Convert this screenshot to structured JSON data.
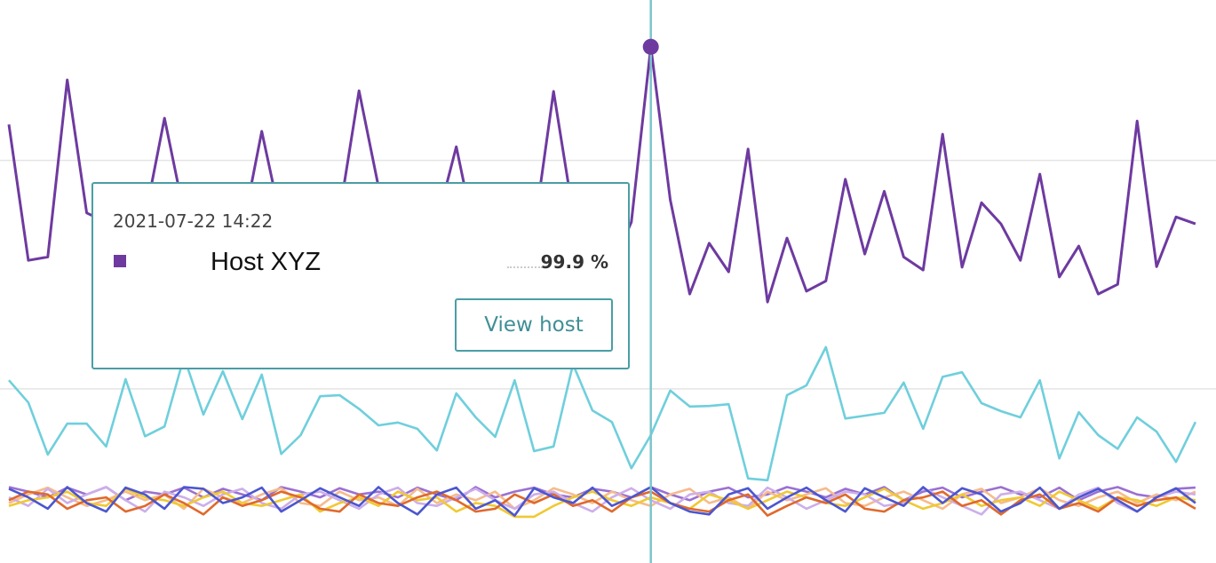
{
  "chart_data": {
    "type": "line",
    "ylim": [
      9.5,
      108.1
    ],
    "gridlines": [
      40,
      80
    ],
    "grid": true,
    "hover_index": 33,
    "series": [
      {
        "name": "Host XYZ",
        "color": "#6e3aa0",
        "values": [
          86.3,
          62.5,
          63.1,
          94.1,
          70.8,
          69.2,
          63.0,
          70.0,
          87.4,
          70.8,
          66.1,
          63.0,
          67.7,
          85.1,
          69.2,
          63.8,
          67.7,
          70.8,
          92.2,
          75.4,
          64.5,
          63.0,
          69.2,
          82.4,
          66.1,
          63.0,
          69.2,
          67.7,
          92.1,
          70.8,
          63.8,
          61.4,
          69.2,
          99.9,
          73.1,
          56.6,
          65.5,
          60.5,
          82.0,
          55.2,
          66.4,
          57.1,
          58.9,
          76.7,
          63.6,
          74.6,
          63.1,
          60.8,
          84.6,
          61.3,
          72.6,
          68.9,
          62.5,
          77.6,
          59.6,
          65.0,
          56.6,
          58.3,
          86.9,
          61.4,
          70.1,
          68.9
        ]
      },
      {
        "color": "#6fcfdc",
        "values": [
          41.5,
          37.6,
          28.5,
          33.9,
          33.9,
          29.9,
          41.7,
          31.7,
          33.4,
          45.6,
          35.5,
          43.1,
          34.7,
          42.5,
          28.6,
          31.9,
          38.7,
          38.9,
          36.5,
          33.6,
          34.1,
          33.0,
          29.2,
          39.2,
          35.0,
          31.6,
          41.5,
          29.1,
          29.9,
          44.3,
          36.2,
          34.2,
          26.1,
          31.9,
          39.7,
          36.9,
          37.0,
          37.3,
          24.3,
          24.0,
          38.9,
          40.6,
          47.3,
          34.8,
          35.3,
          35.8,
          41.1,
          33.0,
          42.1,
          42.9,
          37.5,
          36.1,
          35.0,
          41.5,
          27.8,
          35.9,
          31.9,
          29.5,
          35.0,
          32.5,
          27.2,
          34.2
        ]
      },
      {
        "color": "#4b56cf",
        "values": [
          22.5,
          21.0,
          19.0,
          22.8,
          20.0,
          18.5,
          22.7,
          21.5,
          19.0,
          22.8,
          22.5,
          20.0,
          21.0,
          22.7,
          18.5,
          20.5,
          22.6,
          21.0,
          19.5,
          22.8,
          20.0,
          18.0,
          21.5,
          22.7,
          19.0,
          20.5,
          17.8,
          22.6,
          21.0,
          20.0,
          22.7,
          19.5,
          21.0,
          22.8,
          20.0,
          18.5,
          18.0,
          21.5,
          22.6,
          19.0,
          21.0,
          22.7,
          20.5,
          18.5,
          22.6,
          21.0,
          19.5,
          22.8,
          20.0,
          22.6,
          21.5,
          18.5,
          20.0,
          22.7,
          19.0,
          21.0,
          22.5,
          20.5,
          18.5,
          21.0,
          22.6,
          20.0
        ]
      },
      {
        "color": "#e0692b",
        "values": [
          20.5,
          22.0,
          21.5,
          19.0,
          20.5,
          21.0,
          18.5,
          19.5,
          21.5,
          20.0,
          18.0,
          21.0,
          19.5,
          20.5,
          22.0,
          21.0,
          19.0,
          18.5,
          21.5,
          20.0,
          19.5,
          21.0,
          22.0,
          20.5,
          18.5,
          19.0,
          21.5,
          20.0,
          21.5,
          19.5,
          20.5,
          18.5,
          21.0,
          22.0,
          20.0,
          19.0,
          18.5,
          20.5,
          21.5,
          17.8,
          19.5,
          21.0,
          20.0,
          21.5,
          19.0,
          18.5,
          20.5,
          21.0,
          22.0,
          19.5,
          20.5,
          18.0,
          20.5,
          21.5,
          19.0,
          20.0,
          18.5,
          21.0,
          19.5,
          20.5,
          21.0,
          19.0
        ]
      },
      {
        "color": "#f0c932",
        "values": [
          19.5,
          20.5,
          21.0,
          22.0,
          20.0,
          19.5,
          22.5,
          21.0,
          20.5,
          19.5,
          21.0,
          22.0,
          20.0,
          19.5,
          20.5,
          21.5,
          18.5,
          20.0,
          21.0,
          19.5,
          22.0,
          20.5,
          21.0,
          18.5,
          20.0,
          19.5,
          17.6,
          17.6,
          19.5,
          21.0,
          22.0,
          20.5,
          19.5,
          21.0,
          20.0,
          19.0,
          21.5,
          20.5,
          19.0,
          20.5,
          22.0,
          21.0,
          20.0,
          19.5,
          21.0,
          22.5,
          20.5,
          19.0,
          20.0,
          21.5,
          19.5,
          20.5,
          21.0,
          19.5,
          22.0,
          20.5,
          19.0,
          21.0,
          20.5,
          19.5,
          21.0,
          20.5
        ]
      },
      {
        "color": "#cdaeea",
        "values": [
          21.0,
          19.5,
          22.5,
          20.0,
          21.5,
          22.8,
          20.5,
          18.5,
          22.0,
          21.0,
          19.5,
          21.5,
          22.5,
          20.0,
          19.0,
          21.5,
          22.0,
          20.5,
          19.0,
          21.5,
          22.7,
          20.0,
          19.5,
          21.0,
          22.5,
          20.5,
          19.0,
          21.5,
          22.0,
          20.0,
          18.5,
          21.0,
          22.6,
          20.5,
          19.0,
          21.5,
          22.0,
          20.0,
          19.5,
          22.7,
          21.0,
          19.0,
          20.5,
          22.0,
          21.5,
          19.5,
          20.0,
          22.6,
          21.0,
          19.5,
          18.0,
          21.5,
          22.0,
          20.5,
          19.0,
          21.5,
          22.7,
          20.0,
          18.5,
          21.0,
          22.0,
          21.5
        ]
      },
      {
        "color": "#f6bb8c",
        "values": [
          20.0,
          21.5,
          22.7,
          21.0,
          19.5,
          20.5,
          22.0,
          20.5,
          21.5,
          19.0,
          22.5,
          21.0,
          20.0,
          21.5,
          22.6,
          20.0,
          19.5,
          22.0,
          20.5,
          21.0,
          19.5,
          22.5,
          20.0,
          21.5,
          20.5,
          22.0,
          19.0,
          20.5,
          22.6,
          21.5,
          20.0,
          22.0,
          20.5,
          19.5,
          21.5,
          22.5,
          20.0,
          21.0,
          19.0,
          22.0,
          20.5,
          21.5,
          22.6,
          20.0,
          19.5,
          21.0,
          22.0,
          20.5,
          19.0,
          21.5,
          22.5,
          20.0,
          21.0,
          22.6,
          20.5,
          19.5,
          21.0,
          22.0,
          20.0,
          21.5,
          20.5,
          22.0
        ]
      },
      {
        "color": "#9b70d2",
        "values": [
          22.8,
          22.0,
          21.0,
          22.7,
          21.5,
          22.8,
          20.5,
          22.0,
          21.5,
          22.7,
          21.0,
          22.5,
          21.5,
          20.5,
          22.8,
          22.0,
          21.0,
          22.6,
          21.5,
          22.0,
          21.0,
          22.7,
          21.5,
          20.5,
          22.8,
          21.0,
          22.0,
          22.7,
          21.5,
          21.0,
          22.5,
          22.0,
          21.0,
          22.8,
          21.5,
          20.5,
          22.0,
          22.7,
          21.0,
          21.5,
          22.8,
          22.0,
          21.0,
          22.5,
          21.5,
          22.8,
          20.5,
          22.0,
          22.7,
          21.0,
          22.0,
          22.8,
          21.5,
          21.0,
          22.7,
          20.5,
          22.0,
          22.8,
          21.5,
          21.0,
          22.5,
          22.7
        ]
      }
    ],
    "tooltip": {
      "date": "2021-07-22 14:22",
      "value": 99.9,
      "value_label": "99.9 %",
      "button": "View host"
    }
  }
}
